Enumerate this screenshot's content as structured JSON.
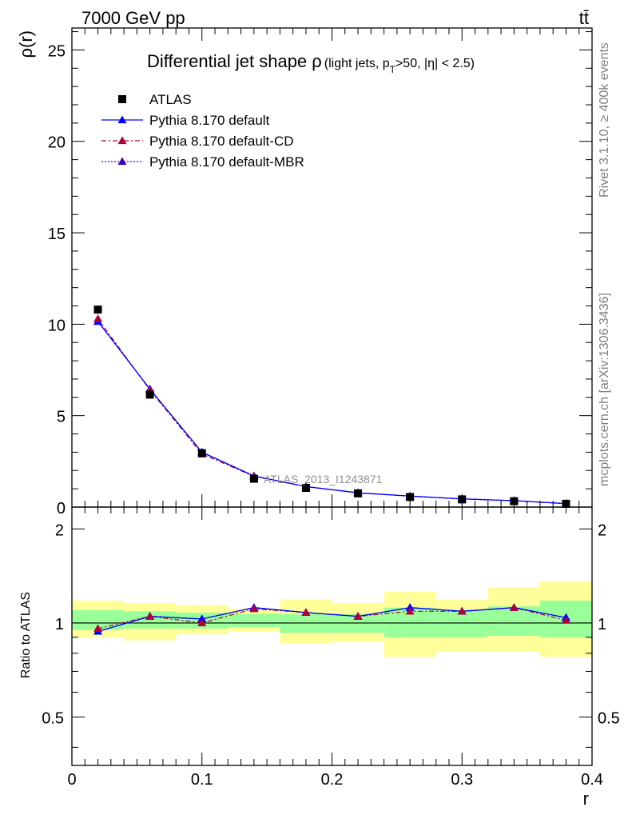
{
  "header": {
    "energy_label": "7000 GeV pp",
    "process_label": "tt̄",
    "rivet_label": "Rivet 3.1.10, ≥ 400k events",
    "mcplots_label": "mcplots.cern.ch [arXiv:1306.3436]",
    "analysis_label": "ATLAS_2013_I1243871"
  },
  "colors": {
    "data": "#000000",
    "default": "#0000ff",
    "cd": "#b0003a",
    "mbr": "#3a00c0",
    "band_inner": "#99ff99",
    "band_outer": "#ffff99"
  },
  "chart_data": [
    {
      "type": "line",
      "title_main": "Differential jet shape ρ",
      "title_cut_a": "(light jets, p",
      "title_cut_sub": "T",
      "title_cut_b": ">50, |η| < 2.5)",
      "ylabel": "ρ(r)",
      "xlabel": "",
      "xlim": [
        0,
        0.4
      ],
      "ylim": [
        0,
        26.2
      ],
      "yticks": [
        0,
        5,
        10,
        15,
        20,
        25
      ],
      "x": [
        0.02,
        0.06,
        0.1,
        0.14,
        0.18,
        0.22,
        0.26,
        0.3,
        0.34,
        0.38
      ],
      "legend_position": "top-left",
      "series": [
        {
          "name": "ATLAS",
          "marker": "square",
          "values": [
            10.8,
            6.15,
            2.95,
            1.55,
            1.05,
            0.75,
            0.55,
            0.42,
            0.32,
            0.18
          ]
        },
        {
          "name": "Pythia 8.170 default",
          "marker": "triangle",
          "line": "solid",
          "values": [
            10.15,
            6.45,
            3.0,
            1.7,
            1.12,
            0.78,
            0.6,
            0.45,
            0.35,
            0.19
          ]
        },
        {
          "name": "Pythia 8.170 default-CD",
          "marker": "triangle",
          "line": "dashdot",
          "values": [
            10.3,
            6.4,
            2.9,
            1.68,
            1.12,
            0.78,
            0.59,
            0.45,
            0.35,
            0.18
          ]
        },
        {
          "name": "Pythia 8.170 default-MBR",
          "marker": "triangle",
          "line": "dotted",
          "values": [
            10.15,
            6.45,
            3.0,
            1.7,
            1.12,
            0.78,
            0.6,
            0.45,
            0.35,
            0.19
          ]
        }
      ]
    },
    {
      "type": "line",
      "ylabel": "Ratio to ATLAS",
      "xlabel": "r",
      "xlim": [
        0,
        0.4
      ],
      "ylim": [
        0.35,
        2.35
      ],
      "yscale": "log",
      "yticks": [
        0.5,
        1,
        2
      ],
      "xticks": [
        0,
        0.1,
        0.2,
        0.3,
        0.4
      ],
      "x": [
        0.02,
        0.06,
        0.1,
        0.14,
        0.18,
        0.22,
        0.26,
        0.3,
        0.34,
        0.38
      ],
      "bin_edges": [
        0,
        0.04,
        0.08,
        0.12,
        0.16,
        0.2,
        0.24,
        0.28,
        0.32,
        0.36,
        0.4
      ],
      "band_inner": {
        "low": [
          0.95,
          0.96,
          0.96,
          0.97,
          0.93,
          0.93,
          0.9,
          0.9,
          0.91,
          0.9
        ],
        "high": [
          1.1,
          1.09,
          1.08,
          1.07,
          1.07,
          1.07,
          1.12,
          1.1,
          1.13,
          1.18
        ]
      },
      "band_outer": {
        "low": [
          0.9,
          0.88,
          0.92,
          0.94,
          0.86,
          0.87,
          0.78,
          0.81,
          0.81,
          0.78
        ],
        "high": [
          1.18,
          1.16,
          1.14,
          1.11,
          1.19,
          1.16,
          1.26,
          1.19,
          1.3,
          1.36
        ]
      },
      "series": [
        {
          "name": "Pythia 8.170 default",
          "values": [
            0.94,
            1.05,
            1.03,
            1.12,
            1.08,
            1.05,
            1.12,
            1.09,
            1.12,
            1.04
          ]
        },
        {
          "name": "Pythia 8.170 default-CD",
          "values": [
            0.96,
            1.05,
            1.0,
            1.11,
            1.08,
            1.05,
            1.09,
            1.09,
            1.12,
            1.02
          ]
        },
        {
          "name": "Pythia 8.170 default-MBR",
          "values": [
            0.94,
            1.05,
            1.03,
            1.12,
            1.08,
            1.05,
            1.12,
            1.09,
            1.12,
            1.04
          ]
        }
      ]
    }
  ]
}
